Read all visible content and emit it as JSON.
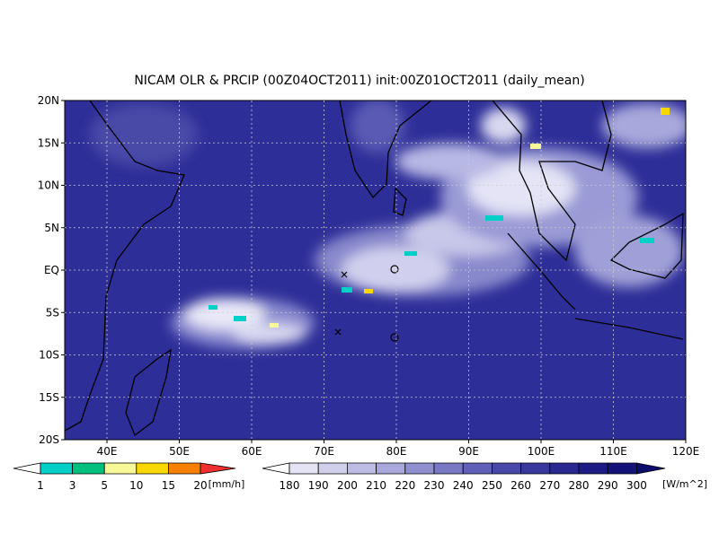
{
  "title": "NICAM OLR & PRCIP (00Z04OCT2011) init:00Z01OCT2011 (daily_mean)",
  "map": {
    "lat_labels": [
      "20N",
      "15N",
      "10N",
      "5N",
      "EQ",
      "5S",
      "10S",
      "15S",
      "20S"
    ],
    "lon_labels": [
      "40E",
      "50E",
      "60E",
      "70E",
      "80E",
      "90E",
      "100E",
      "110E",
      "120E"
    ]
  },
  "precip_legend": {
    "labels": [
      "1",
      "3",
      "5",
      "10",
      "15",
      "20"
    ],
    "unit": "[mm/h]",
    "colors": [
      "#ffffff",
      "#00d0c8",
      "#00c080",
      "#f8f898",
      "#f8d800",
      "#f88000",
      "#f03030"
    ]
  },
  "olr_legend": {
    "labels": [
      "180",
      "190",
      "200",
      "210",
      "220",
      "230",
      "240",
      "250",
      "260",
      "270",
      "280",
      "290",
      "300"
    ],
    "unit": "[W/m^2]",
    "colors": [
      "#ffffff",
      "#e4e4f4",
      "#d0d0ec",
      "#bcbce4",
      "#a8a8dc",
      "#9090d0",
      "#7878c4",
      "#6060b8",
      "#4848a8",
      "#38389c",
      "#282890",
      "#1c1c84",
      "#141478",
      "#0c0c6c"
    ]
  }
}
